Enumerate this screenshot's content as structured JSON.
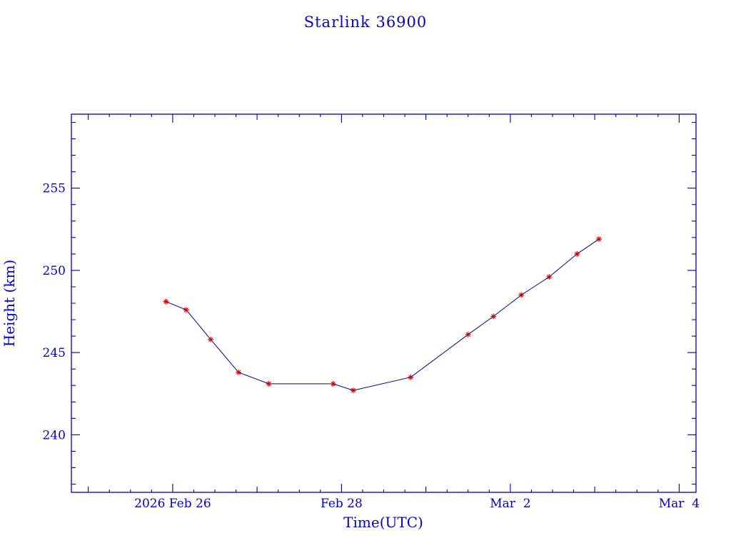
{
  "page": {
    "background": "#ffffff"
  },
  "chart_data": {
    "type": "line",
    "title": "Starlink 36900",
    "xlabel": "Time(UTC)",
    "ylabel": "Height (km)",
    "legend": "none",
    "grid": "off",
    "x_axis": {
      "range": [
        24.8,
        32.2
      ],
      "unit": "date (decimal day, Feb 2026 continuing into Mar)",
      "minor_step": 0.25,
      "major_ticks": [
        {
          "value": 26,
          "label": "2026 Feb 26"
        },
        {
          "value": 28,
          "label": "Feb 28"
        },
        {
          "value": 30,
          "label": "Mar  2"
        },
        {
          "value": 32,
          "label": "Mar  4"
        }
      ]
    },
    "y_axis": {
      "range": [
        236.5,
        259.5
      ],
      "minor_step": 1,
      "major_ticks": [
        {
          "value": 240,
          "label": "240"
        },
        {
          "value": 245,
          "label": "245"
        },
        {
          "value": 250,
          "label": "250"
        },
        {
          "value": 255,
          "label": "255"
        }
      ]
    },
    "series": [
      {
        "name": "height",
        "marker": "asterisk",
        "line_color": "#00008b",
        "marker_color": "#cc0000",
        "points": [
          {
            "x": 25.92,
            "y": 248.1
          },
          {
            "x": 26.16,
            "y": 247.6
          },
          {
            "x": 26.45,
            "y": 245.8
          },
          {
            "x": 26.78,
            "y": 243.8
          },
          {
            "x": 27.14,
            "y": 243.1
          },
          {
            "x": 27.9,
            "y": 243.1
          },
          {
            "x": 28.14,
            "y": 242.7
          },
          {
            "x": 28.82,
            "y": 243.5
          },
          {
            "x": 29.5,
            "y": 246.1
          },
          {
            "x": 29.8,
            "y": 247.2
          },
          {
            "x": 30.13,
            "y": 248.5
          },
          {
            "x": 30.46,
            "y": 249.6
          },
          {
            "x": 30.79,
            "y": 251.0
          },
          {
            "x": 31.05,
            "y": 251.9
          }
        ]
      }
    ],
    "colors": {
      "frame": "#0000a8",
      "text": "#0000cd"
    }
  }
}
